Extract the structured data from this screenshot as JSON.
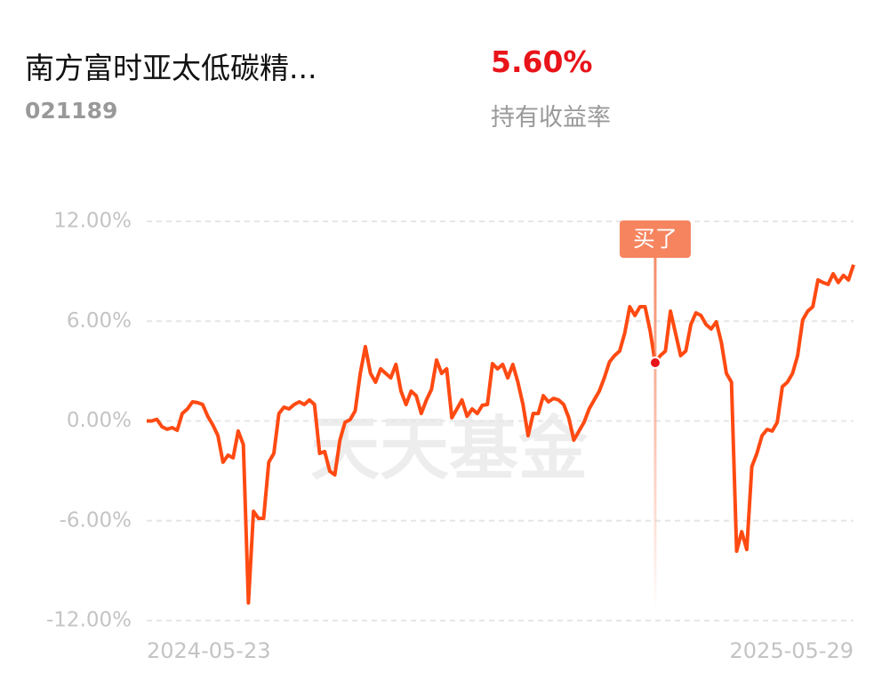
{
  "header": {
    "title": "南方富时亚太低碳精...",
    "code": "021189",
    "return_value": "5.60%",
    "return_label": "持有收益率"
  },
  "watermark": "天天基金",
  "chart_data": {
    "type": "line",
    "categories": [
      "2024-05-23",
      null,
      null,
      null,
      null,
      null,
      null,
      null,
      null,
      null,
      null,
      null,
      null,
      null,
      null,
      null,
      null,
      null,
      null,
      null,
      null,
      null,
      null,
      null,
      null,
      null,
      null,
      null,
      null,
      null,
      null,
      null,
      null,
      null,
      null,
      null,
      null,
      null,
      null,
      null,
      null,
      null,
      null,
      null,
      null,
      null,
      null,
      null,
      null,
      null,
      null,
      null,
      null,
      null,
      null,
      null,
      null,
      null,
      null,
      null,
      null,
      null,
      null,
      null,
      null,
      null,
      null,
      null,
      null,
      null,
      null,
      null,
      null,
      null,
      null,
      null,
      null,
      null,
      null,
      null,
      null,
      null,
      null,
      null,
      null,
      null,
      null,
      null,
      null,
      null,
      null,
      null,
      null,
      null,
      null,
      null,
      null,
      null,
      null,
      null,
      null,
      null,
      null,
      null,
      null,
      null,
      null,
      null,
      null,
      null,
      null,
      null,
      null,
      null,
      null,
      null,
      null,
      null,
      null,
      null,
      null,
      null,
      null,
      null,
      null,
      null,
      null,
      null,
      null,
      null,
      null,
      null,
      null,
      null,
      null,
      null,
      null,
      null,
      null,
      "2025-05-29"
    ],
    "series": [
      {
        "color": "#ff4a12",
        "values": [
          0,
          0,
          0.1,
          -0.35,
          -0.5,
          -0.4,
          -0.56,
          0.45,
          0.72,
          1.15,
          1.1,
          0.99,
          0.29,
          -0.24,
          -0.88,
          -2.48,
          -2.06,
          -2.22,
          -0.61,
          -1.42,
          -10.94,
          -5.43,
          -5.86,
          -5.86,
          -2.48,
          -1.95,
          0.45,
          0.83,
          0.72,
          0.99,
          1.15,
          0.99,
          1.26,
          0.99,
          -1.95,
          -1.84,
          -3.02,
          -3.24,
          -1.15,
          -0.08,
          0.08,
          0.61,
          2.86,
          4.47,
          2.86,
          2.33,
          3.13,
          2.86,
          2.59,
          3.4,
          1.79,
          0.99,
          1.79,
          1.52,
          0.45,
          1.26,
          1.9,
          3.66,
          2.86,
          3.13,
          0.19,
          0.72,
          1.26,
          0.29,
          0.72,
          0.45,
          0.94,
          0.99,
          3.45,
          3.13,
          3.4,
          2.59,
          3.4,
          2.33,
          0.99,
          -0.88,
          0.45,
          0.45,
          1.52,
          1.15,
          1.36,
          1.26,
          0.99,
          0.19,
          -1.15,
          -0.61,
          -0.08,
          0.72,
          1.26,
          1.79,
          2.59,
          3.55,
          3.93,
          4.2,
          5.27,
          6.87,
          6.34,
          6.87,
          6.87,
          5.43,
          3.5,
          3.93,
          4.2,
          6.6,
          5.27,
          3.93,
          4.2,
          5.8,
          6.5,
          6.34,
          5.8,
          5.53,
          5.96,
          4.73,
          2.86,
          2.33,
          -7.83,
          -6.66,
          -7.73,
          -2.75,
          -1.95,
          -0.88,
          -0.51,
          -0.61,
          -0.08,
          2.06,
          2.33,
          2.86,
          3.93,
          6.07,
          6.6,
          6.87,
          8.48,
          8.32,
          8.21,
          8.85,
          8.32,
          8.75,
          8.48,
          9.39
        ]
      }
    ],
    "ylim": [
      -12,
      12
    ],
    "yticks": [
      {
        "value": -12,
        "label": "-12.00%"
      },
      {
        "value": -6,
        "label": "-6.00%"
      },
      {
        "value": 0,
        "label": "0.00%"
      },
      {
        "value": 6,
        "label": "6.00%"
      },
      {
        "value": 12,
        "label": "12.00%"
      }
    ],
    "grid": true,
    "annotation": {
      "label": "买了",
      "value": 3.5,
      "color": "#f5845f"
    }
  }
}
